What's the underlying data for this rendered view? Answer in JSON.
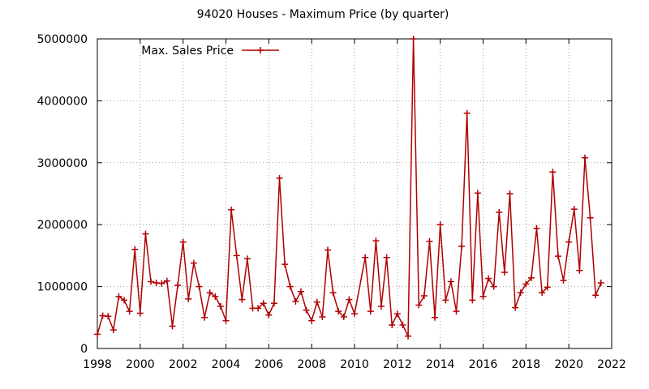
{
  "chart_data": {
    "type": "line",
    "title": "94020 Houses - Maximum Price (by quarter)",
    "xlabel": "",
    "ylabel": "",
    "xlim": [
      1998,
      2022
    ],
    "ylim": [
      0,
      5000000
    ],
    "x_ticks": [
      1998,
      2000,
      2002,
      2004,
      2006,
      2008,
      2010,
      2012,
      2014,
      2016,
      2018,
      2020,
      2022
    ],
    "y_ticks": [
      0,
      1000000,
      2000000,
      3000000,
      4000000,
      5000000
    ],
    "grid": true,
    "legend_position": "top-left",
    "series": [
      {
        "name": "Max. Sales Price",
        "color": "#b00000",
        "marker": "plus",
        "x": [
          1998.0,
          1998.25,
          1998.5,
          1998.75,
          1999.0,
          1999.25,
          1999.5,
          1999.75,
          2000.0,
          2000.25,
          2000.5,
          2000.75,
          2001.0,
          2001.25,
          2001.5,
          2001.75,
          2002.0,
          2002.25,
          2002.5,
          2002.75,
          2003.0,
          2003.25,
          2003.5,
          2003.75,
          2004.0,
          2004.25,
          2004.5,
          2004.75,
          2005.0,
          2005.25,
          2005.5,
          2005.75,
          2006.0,
          2006.25,
          2006.5,
          2006.75,
          2007.0,
          2007.25,
          2007.5,
          2007.75,
          2008.0,
          2008.25,
          2008.5,
          2008.75,
          2009.0,
          2009.25,
          2009.5,
          2009.75,
          2010.0,
          2010.5,
          2010.75,
          2011.0,
          2011.25,
          2011.5,
          2011.75,
          2012.0,
          2012.25,
          2012.5,
          2012.75,
          2013.0,
          2013.25,
          2013.5,
          2013.75,
          2014.0,
          2014.25,
          2014.5,
          2014.75,
          2015.0,
          2015.25,
          2015.5,
          2015.75,
          2016.0,
          2016.25,
          2016.5,
          2016.75,
          2017.0,
          2017.25,
          2017.5,
          2017.75,
          2018.0,
          2018.25,
          2018.5,
          2018.75,
          2019.0,
          2019.25,
          2019.5,
          2019.75,
          2020.0,
          2020.25,
          2020.5,
          2020.75,
          2021.0,
          2021.25,
          2021.5
        ],
        "y": [
          230000,
          530000,
          520000,
          300000,
          840000,
          780000,
          600000,
          1600000,
          570000,
          1850000,
          1080000,
          1060000,
          1050000,
          1090000,
          360000,
          1020000,
          1720000,
          800000,
          1380000,
          1000000,
          500000,
          900000,
          840000,
          680000,
          450000,
          2240000,
          1500000,
          790000,
          1450000,
          650000,
          650000,
          730000,
          540000,
          730000,
          2750000,
          1360000,
          1000000,
          760000,
          920000,
          620000,
          450000,
          750000,
          510000,
          1590000,
          900000,
          600000,
          510000,
          790000,
          560000,
          1470000,
          600000,
          1740000,
          680000,
          1470000,
          380000,
          560000,
          380000,
          200000,
          5000000,
          700000,
          850000,
          1730000,
          500000,
          2000000,
          780000,
          1080000,
          600000,
          1650000,
          3800000,
          780000,
          2510000,
          840000,
          1130000,
          1000000,
          2200000,
          1230000,
          2500000,
          660000,
          900000,
          1040000,
          1140000,
          1940000,
          900000,
          990000,
          2850000,
          1490000,
          1100000,
          1720000,
          2250000,
          1260000,
          3080000,
          2110000,
          860000,
          1060000
        ]
      }
    ]
  }
}
